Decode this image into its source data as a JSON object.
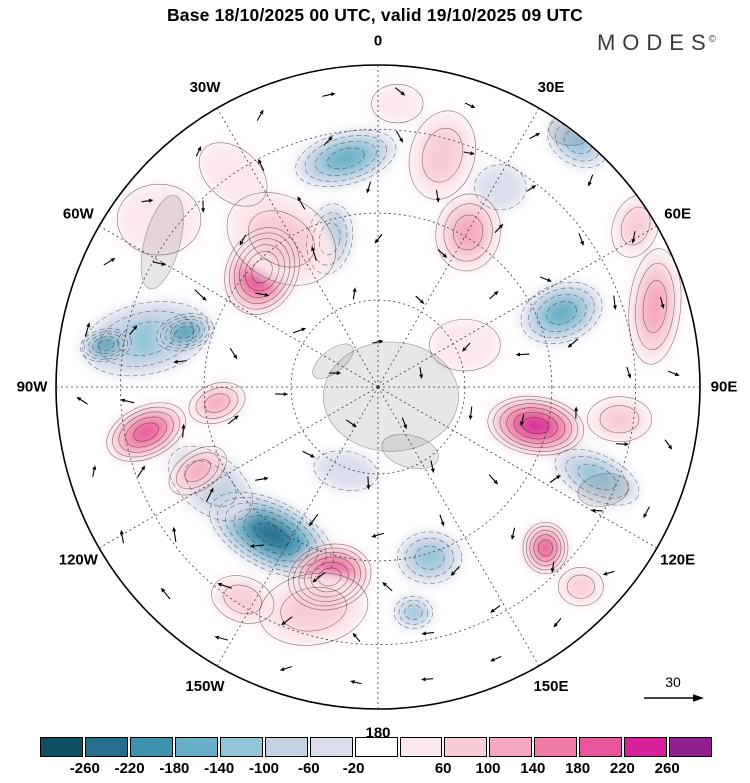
{
  "title": "Base 18/10/2025 00 UTC, valid 19/10/2025 09 UTC",
  "logo": {
    "text": "MODES",
    "mark": "©"
  },
  "reference_arrow": {
    "label": "30"
  },
  "chart_data": {
    "type": "heatmap",
    "subtype": "south-polar-stereographic anomaly map with wind vectors",
    "value_range": [
      -260,
      260
    ],
    "meridians": [
      {
        "label": "0",
        "angle": 0
      },
      {
        "label": "30E",
        "angle": 30
      },
      {
        "label": "60E",
        "angle": 60
      },
      {
        "label": "90E",
        "angle": 90
      },
      {
        "label": "120E",
        "angle": 120
      },
      {
        "label": "150E",
        "angle": 150
      },
      {
        "label": "180",
        "angle": 180
      },
      {
        "label": "150W",
        "angle": 210
      },
      {
        "label": "120W",
        "angle": 240
      },
      {
        "label": "90W",
        "angle": 270
      },
      {
        "label": "60W",
        "angle": 300
      },
      {
        "label": "30W",
        "angle": 330
      }
    ],
    "graticule_radii": [
      0.27,
      0.54,
      0.8
    ],
    "colorbar": {
      "colors": [
        "#0e4f63",
        "#256f8c",
        "#3f92ae",
        "#68aec7",
        "#93c6d9",
        "#c3d3e4",
        "#dcdeed",
        "#ffffff",
        "#fce8ec",
        "#f9ccd6",
        "#f5a8bf",
        "#ef7ba6",
        "#e8559b",
        "#d6219b",
        "#93208f"
      ],
      "tick_labels": [
        "-260",
        "-220",
        "-180",
        "-140",
        "-100",
        "-60",
        "-20",
        "",
        "60",
        "100",
        "140",
        "180",
        "220",
        "260"
      ]
    },
    "blob_fields": [
      "x",
      "y",
      "rx",
      "ry",
      "rot_deg",
      "level"
    ],
    "level_note": "level n maps to colorbar color index 7+n; negative levels are blue anomalies, positive are pink/magenta",
    "blobs": [
      [
        -0.1,
        -0.71,
        0.16,
        0.08,
        -15,
        -4
      ],
      [
        -0.15,
        -0.46,
        0.07,
        0.11,
        10,
        -3
      ],
      [
        -0.72,
        -0.15,
        0.2,
        0.11,
        -12,
        -3
      ],
      [
        -0.845,
        -0.13,
        0.08,
        0.05,
        -10,
        -5
      ],
      [
        -0.6,
        -0.17,
        0.09,
        0.055,
        -15,
        -5
      ],
      [
        -0.33,
        0.46,
        0.21,
        0.105,
        27,
        -6
      ],
      [
        -0.52,
        0.3,
        0.15,
        0.09,
        38,
        -2
      ],
      [
        0.16,
        0.53,
        0.1,
        0.08,
        0,
        -3
      ],
      [
        0.11,
        0.7,
        0.06,
        0.05,
        0,
        -3
      ],
      [
        0.57,
        -0.23,
        0.13,
        0.09,
        -20,
        -4
      ],
      [
        0.62,
        -0.76,
        0.1,
        0.07,
        30,
        -3
      ],
      [
        0.68,
        0.28,
        0.14,
        0.07,
        25,
        -3
      ],
      [
        -0.1,
        0.26,
        0.1,
        0.06,
        10,
        -1
      ],
      [
        0.38,
        -0.62,
        0.08,
        0.07,
        0,
        -1
      ],
      [
        -0.36,
        -0.36,
        0.11,
        0.14,
        25,
        6
      ],
      [
        -0.3,
        -0.46,
        0.18,
        0.13,
        30,
        2
      ],
      [
        0.2,
        -0.72,
        0.1,
        0.14,
        15,
        2
      ],
      [
        0.28,
        -0.48,
        0.1,
        0.12,
        10,
        3
      ],
      [
        0.86,
        -0.25,
        0.08,
        0.18,
        5,
        3
      ],
      [
        0.8,
        -0.5,
        0.07,
        0.1,
        20,
        2
      ],
      [
        0.49,
        0.12,
        0.15,
        0.09,
        8,
        6
      ],
      [
        0.75,
        0.1,
        0.1,
        0.07,
        0,
        2
      ],
      [
        0.52,
        0.5,
        0.07,
        0.08,
        0,
        5
      ],
      [
        -0.15,
        0.59,
        0.13,
        0.1,
        -15,
        6
      ],
      [
        -0.2,
        0.69,
        0.17,
        0.11,
        -10,
        2
      ],
      [
        -0.72,
        0.14,
        0.13,
        0.08,
        -25,
        5
      ],
      [
        -0.5,
        0.05,
        0.09,
        0.06,
        -20,
        3
      ],
      [
        -0.56,
        0.26,
        0.1,
        0.06,
        -35,
        3
      ],
      [
        -0.68,
        -0.52,
        0.13,
        0.11,
        0,
        1
      ],
      [
        0.06,
        -0.88,
        0.08,
        0.06,
        0,
        1
      ],
      [
        0.27,
        -0.13,
        0.11,
        0.08,
        0,
        1
      ],
      [
        0.63,
        0.62,
        0.07,
        0.06,
        0,
        2
      ],
      [
        -0.42,
        0.66,
        0.1,
        0.07,
        20,
        2
      ],
      [
        -0.45,
        -0.66,
        0.12,
        0.08,
        40,
        1
      ]
    ],
    "land_fields": [
      "x",
      "y",
      "rx",
      "ry",
      "rot_deg"
    ],
    "land": [
      [
        0.04,
        0.03,
        0.21,
        0.17,
        0
      ],
      [
        -0.14,
        -0.08,
        0.075,
        0.035,
        -38
      ],
      [
        0.1,
        0.2,
        0.09,
        0.05,
        15
      ],
      [
        0.7,
        0.32,
        0.08,
        0.05,
        -10
      ],
      [
        -0.67,
        -0.45,
        0.055,
        0.15,
        15
      ],
      [
        0.6,
        -0.8,
        0.07,
        0.05,
        0
      ]
    ],
    "wind": {
      "reference_value": 30,
      "rings": [
        {
          "r": 0.14,
          "n": 5
        },
        {
          "r": 0.3,
          "n": 9
        },
        {
          "r": 0.46,
          "n": 14
        },
        {
          "r": 0.62,
          "n": 18
        },
        {
          "r": 0.78,
          "n": 22
        },
        {
          "r": 0.92,
          "n": 26
        }
      ]
    }
  }
}
